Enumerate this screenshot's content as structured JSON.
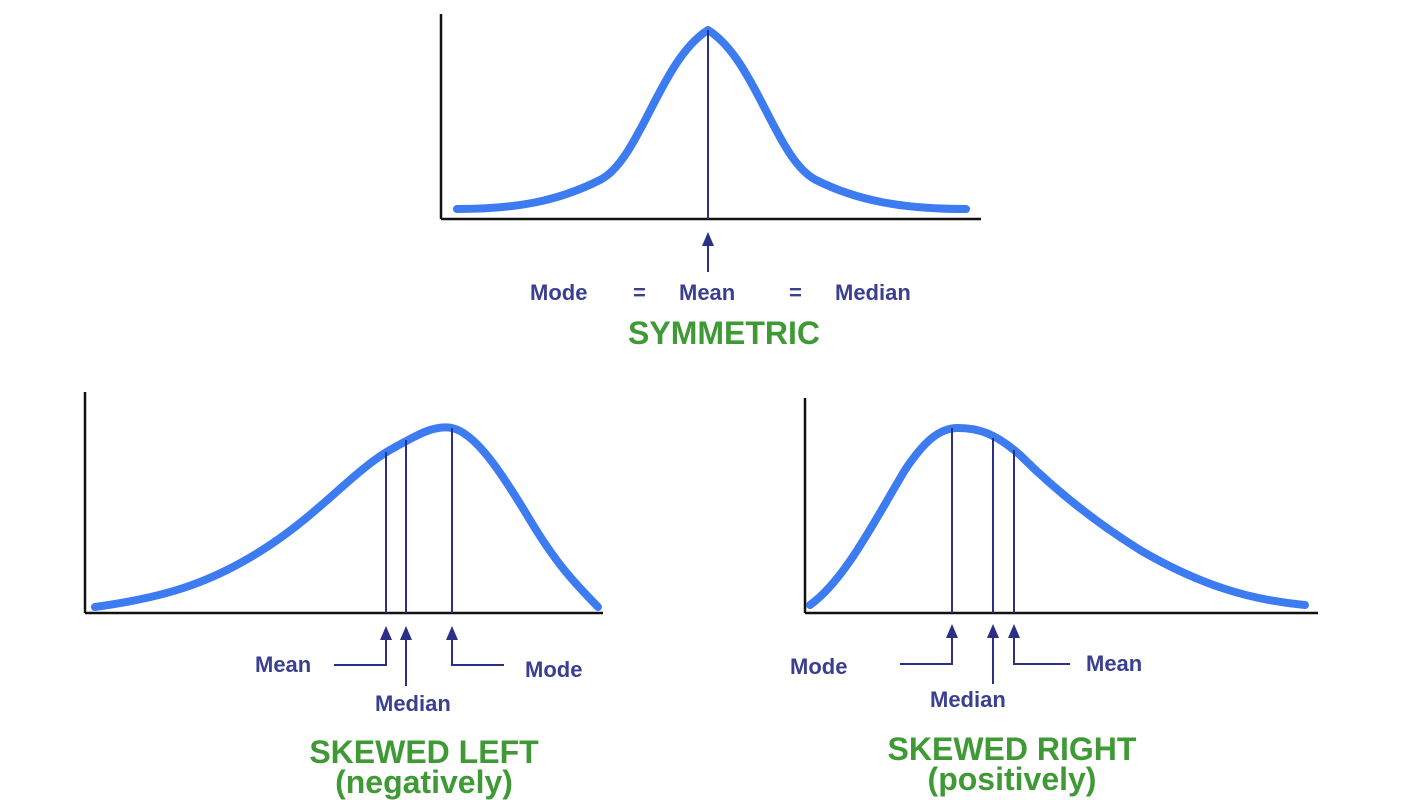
{
  "panels": {
    "symmetric": {
      "label_mode": "Mode",
      "label_eq1": "=",
      "label_mean": "Mean",
      "label_eq2": "=",
      "label_median": "Median",
      "title": "SYMMETRIC"
    },
    "skewed_left": {
      "label_mean": "Mean",
      "label_median": "Median",
      "label_mode": "Mode",
      "title": "SKEWED LEFT",
      "subtitle": "(negatively)"
    },
    "skewed_right": {
      "label_mode": "Mode",
      "label_median": "Median",
      "label_mean": "Mean",
      "title": "SKEWED RIGHT",
      "subtitle": "(positively)"
    }
  },
  "colors": {
    "curve": "#3d7cf0",
    "marker": "#2b2f86",
    "label": "#3a3f8f",
    "title": "#3f9a36",
    "axis": "#111111"
  }
}
